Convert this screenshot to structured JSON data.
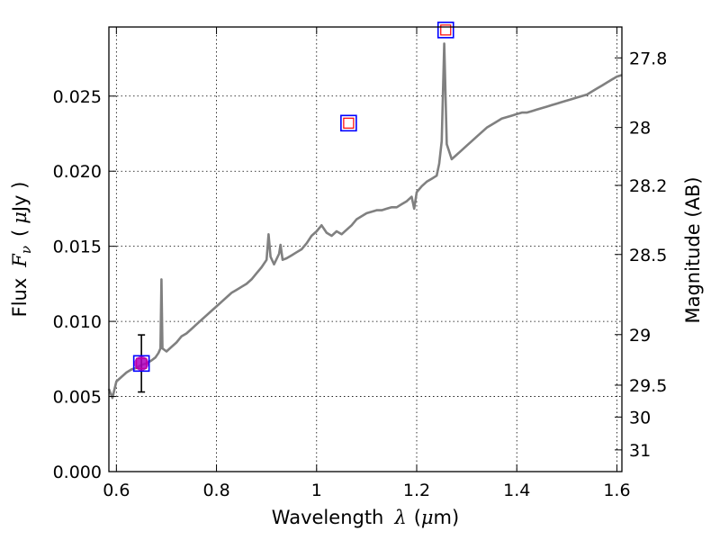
{
  "chart_data": {
    "type": "line",
    "xlabel": "Wavelength",
    "xlabel_symbol": "λ",
    "xlabel_unit_open": "(",
    "xlabel_unit_mu": "μ",
    "xlabel_unit_rest": "m)",
    "ylabel": "Flux",
    "ylabel_symbol": "F",
    "ylabel_sub": "ν",
    "ylabel_unit_open": "(",
    "ylabel_unit_mu": "μ",
    "ylabel_unit_rest": "Jy )",
    "y2label": "Magnitude (AB)",
    "xlim": [
      0.585,
      1.61
    ],
    "ylim": [
      0.0,
      0.0296
    ],
    "grid": true,
    "x_ticks": [
      {
        "v": 0.6,
        "label": "0.6"
      },
      {
        "v": 0.8,
        "label": "0.8"
      },
      {
        "v": 1.0,
        "label": "1"
      },
      {
        "v": 1.2,
        "label": "1.2"
      },
      {
        "v": 1.4,
        "label": "1.4"
      },
      {
        "v": 1.6,
        "label": "1.6"
      }
    ],
    "y_ticks": [
      {
        "v": 0.0,
        "label": "0.000"
      },
      {
        "v": 0.005,
        "label": "0.005"
      },
      {
        "v": 0.01,
        "label": "0.010"
      },
      {
        "v": 0.015,
        "label": "0.015"
      },
      {
        "v": 0.02,
        "label": "0.020"
      },
      {
        "v": 0.025,
        "label": "0.025"
      }
    ],
    "y2_ticks": [
      {
        "v": 27.8,
        "label": "27.8"
      },
      {
        "v": 28.0,
        "label": "28"
      },
      {
        "v": 28.2,
        "label": "28.2"
      },
      {
        "v": 28.5,
        "label": "28.5"
      },
      {
        "v": 29.0,
        "label": "29"
      },
      {
        "v": 29.5,
        "label": "29.5"
      },
      {
        "v": 30.0,
        "label": "30"
      },
      {
        "v": 31.0,
        "label": "31"
      }
    ],
    "spectrum": {
      "color": "#808080",
      "points": [
        [
          0.585,
          0.0055
        ],
        [
          0.592,
          0.0049
        ],
        [
          0.6,
          0.006
        ],
        [
          0.61,
          0.0063
        ],
        [
          0.62,
          0.0066
        ],
        [
          0.63,
          0.0068
        ],
        [
          0.64,
          0.0069
        ],
        [
          0.65,
          0.0071
        ],
        [
          0.66,
          0.0072
        ],
        [
          0.67,
          0.0074
        ],
        [
          0.678,
          0.0076
        ],
        [
          0.684,
          0.0079
        ],
        [
          0.688,
          0.0082
        ],
        [
          0.69,
          0.0128
        ],
        [
          0.692,
          0.0082
        ],
        [
          0.7,
          0.008
        ],
        [
          0.71,
          0.0083
        ],
        [
          0.72,
          0.0086
        ],
        [
          0.73,
          0.009
        ],
        [
          0.74,
          0.0092
        ],
        [
          0.75,
          0.0095
        ],
        [
          0.76,
          0.0098
        ],
        [
          0.77,
          0.0101
        ],
        [
          0.78,
          0.0104
        ],
        [
          0.79,
          0.0107
        ],
        [
          0.8,
          0.011
        ],
        [
          0.81,
          0.0113
        ],
        [
          0.82,
          0.0116
        ],
        [
          0.83,
          0.0119
        ],
        [
          0.84,
          0.0121
        ],
        [
          0.85,
          0.0123
        ],
        [
          0.86,
          0.0125
        ],
        [
          0.87,
          0.0128
        ],
        [
          0.88,
          0.0132
        ],
        [
          0.89,
          0.0136
        ],
        [
          0.9,
          0.0141
        ],
        [
          0.904,
          0.0158
        ],
        [
          0.908,
          0.0143
        ],
        [
          0.915,
          0.0138
        ],
        [
          0.925,
          0.0145
        ],
        [
          0.928,
          0.0151
        ],
        [
          0.932,
          0.0141
        ],
        [
          0.94,
          0.0142
        ],
        [
          0.95,
          0.0144
        ],
        [
          0.96,
          0.0146
        ],
        [
          0.97,
          0.0148
        ],
        [
          0.98,
          0.0152
        ],
        [
          0.99,
          0.0157
        ],
        [
          1.0,
          0.016
        ],
        [
          1.01,
          0.0164
        ],
        [
          1.02,
          0.0159
        ],
        [
          1.03,
          0.0157
        ],
        [
          1.04,
          0.016
        ],
        [
          1.05,
          0.0158
        ],
        [
          1.06,
          0.0161
        ],
        [
          1.07,
          0.0164
        ],
        [
          1.08,
          0.0168
        ],
        [
          1.09,
          0.017
        ],
        [
          1.1,
          0.0172
        ],
        [
          1.11,
          0.0173
        ],
        [
          1.12,
          0.0174
        ],
        [
          1.13,
          0.0174
        ],
        [
          1.14,
          0.0175
        ],
        [
          1.15,
          0.0176
        ],
        [
          1.16,
          0.0176
        ],
        [
          1.17,
          0.0178
        ],
        [
          1.18,
          0.018
        ],
        [
          1.19,
          0.0183
        ],
        [
          1.195,
          0.0175
        ],
        [
          1.2,
          0.0186
        ],
        [
          1.21,
          0.019
        ],
        [
          1.22,
          0.0193
        ],
        [
          1.23,
          0.0195
        ],
        [
          1.24,
          0.0197
        ],
        [
          1.245,
          0.0205
        ],
        [
          1.25,
          0.022
        ],
        [
          1.255,
          0.0285
        ],
        [
          1.26,
          0.0218
        ],
        [
          1.27,
          0.0208
        ],
        [
          1.28,
          0.0211
        ],
        [
          1.29,
          0.0214
        ],
        [
          1.3,
          0.0217
        ],
        [
          1.31,
          0.022
        ],
        [
          1.32,
          0.0223
        ],
        [
          1.33,
          0.0226
        ],
        [
          1.34,
          0.0229
        ],
        [
          1.35,
          0.0231
        ],
        [
          1.36,
          0.0233
        ],
        [
          1.37,
          0.0235
        ],
        [
          1.38,
          0.0236
        ],
        [
          1.39,
          0.0237
        ],
        [
          1.4,
          0.0238
        ],
        [
          1.41,
          0.0239
        ],
        [
          1.42,
          0.0239
        ],
        [
          1.43,
          0.024
        ],
        [
          1.44,
          0.0241
        ],
        [
          1.45,
          0.0242
        ],
        [
          1.46,
          0.0243
        ],
        [
          1.47,
          0.0244
        ],
        [
          1.48,
          0.0245
        ],
        [
          1.49,
          0.0246
        ],
        [
          1.5,
          0.0247
        ],
        [
          1.51,
          0.0248
        ],
        [
          1.52,
          0.0249
        ],
        [
          1.53,
          0.025
        ],
        [
          1.54,
          0.0251
        ],
        [
          1.55,
          0.0253
        ],
        [
          1.56,
          0.0255
        ],
        [
          1.57,
          0.0257
        ],
        [
          1.58,
          0.0259
        ],
        [
          1.59,
          0.0261
        ],
        [
          1.6,
          0.0263
        ],
        [
          1.61,
          0.0264
        ]
      ]
    },
    "errorbar": {
      "x": 0.65,
      "y": 0.0072,
      "ylow": 0.0053,
      "yhigh": 0.0091,
      "color": "#000000"
    },
    "photometry": [
      {
        "x": 0.65,
        "y": 0.0072,
        "square": "#0000ff",
        "inner": "#ff0000",
        "dot": "#b000c0"
      },
      {
        "x": 1.064,
        "y": 0.0232,
        "square": "#0000ff",
        "inner": "#ff0000"
      },
      {
        "x": 1.258,
        "y": 0.0294,
        "square": "#0000ff",
        "inner": "#ff0000"
      }
    ]
  }
}
